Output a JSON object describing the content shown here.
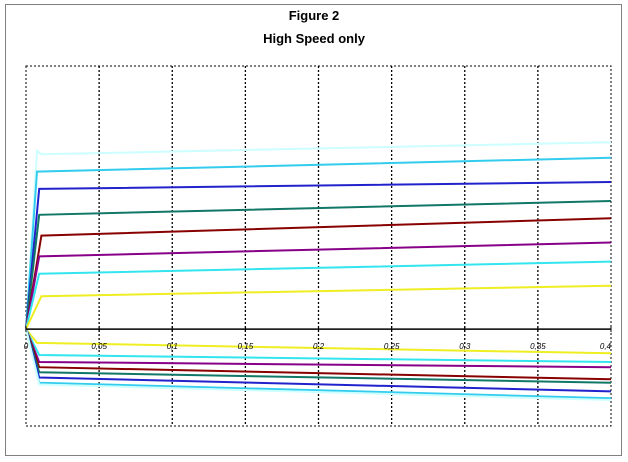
{
  "chart_data": {
    "type": "line",
    "title": "Figure 2",
    "subtitle": "High Speed only",
    "xlabel": "",
    "ylabel": "",
    "xlim": [
      0,
      0.4
    ],
    "ylim": [
      -0.56,
      1.52
    ],
    "x_ticks": [
      {
        "value": 0,
        "label": "0"
      },
      {
        "value": 0.05,
        "label": "0,05"
      },
      {
        "value": 0.1,
        "label": "0,1"
      },
      {
        "value": 0.15,
        "label": "0,15"
      },
      {
        "value": 0.2,
        "label": "0,2"
      },
      {
        "value": 0.25,
        "label": "0,25"
      },
      {
        "value": 0.3,
        "label": "0,3"
      },
      {
        "value": 0.35,
        "label": "0,35"
      },
      {
        "value": 0.4,
        "label": "0,4"
      }
    ],
    "grid": "vertical dotted",
    "legend": "none",
    "series": [
      {
        "color": "#ccffff",
        "points": [
          [
            0,
            0
          ],
          [
            0.0075,
            1.03
          ],
          [
            0.0105,
            1.01
          ],
          [
            0.4,
            1.08
          ]
        ]
      },
      {
        "color": "#33ccee",
        "points": [
          [
            0,
            0
          ],
          [
            0.0075,
            0.91
          ],
          [
            0.4,
            0.99
          ]
        ]
      },
      {
        "color": "#2222cc",
        "points": [
          [
            0,
            0
          ],
          [
            0.009,
            0.81
          ],
          [
            0.4,
            0.85
          ]
        ]
      },
      {
        "color": "#117766",
        "points": [
          [
            0,
            0
          ],
          [
            0.009,
            0.66
          ],
          [
            0.4,
            0.74
          ]
        ]
      },
      {
        "color": "#880000",
        "points": [
          [
            0,
            0
          ],
          [
            0.0105,
            0.54
          ],
          [
            0.4,
            0.64
          ]
        ]
      },
      {
        "color": "#880088",
        "points": [
          [
            0,
            0
          ],
          [
            0.009,
            0.42
          ],
          [
            0.4,
            0.5
          ]
        ]
      },
      {
        "color": "#33e5ee",
        "points": [
          [
            0,
            0
          ],
          [
            0.009,
            0.32
          ],
          [
            0.4,
            0.39
          ]
        ]
      },
      {
        "color": "#eeee22",
        "points": [
          [
            0,
            0
          ],
          [
            0.0105,
            0.19
          ],
          [
            0.4,
            0.25
          ]
        ]
      },
      {
        "color": "#eeee22",
        "points": [
          [
            0,
            0
          ],
          [
            0.0075,
            -0.08
          ],
          [
            0.4,
            -0.14
          ]
        ]
      },
      {
        "color": "#33e5ee",
        "points": [
          [
            0,
            0
          ],
          [
            0.009,
            -0.15
          ],
          [
            0.4,
            -0.19
          ]
        ]
      },
      {
        "color": "#880088",
        "points": [
          [
            0,
            0
          ],
          [
            0.009,
            -0.19
          ],
          [
            0.4,
            -0.22
          ]
        ]
      },
      {
        "color": "#880000",
        "points": [
          [
            0,
            0
          ],
          [
            0.009,
            -0.22
          ],
          [
            0.4,
            -0.29
          ]
        ]
      },
      {
        "color": "#117766",
        "points": [
          [
            0,
            0
          ],
          [
            0.009,
            -0.25
          ],
          [
            0.4,
            -0.31
          ]
        ]
      },
      {
        "color": "#2222cc",
        "points": [
          [
            0,
            0
          ],
          [
            0.009,
            -0.28
          ],
          [
            0.4,
            -0.36
          ]
        ]
      },
      {
        "color": "#33ccee",
        "points": [
          [
            0,
            0
          ],
          [
            0.009,
            -0.31
          ],
          [
            0.4,
            -0.4
          ]
        ]
      },
      {
        "color": "#ccffff",
        "points": [
          [
            0,
            0
          ],
          [
            0.009,
            -0.32
          ],
          [
            0.4,
            -0.41
          ]
        ]
      }
    ]
  }
}
